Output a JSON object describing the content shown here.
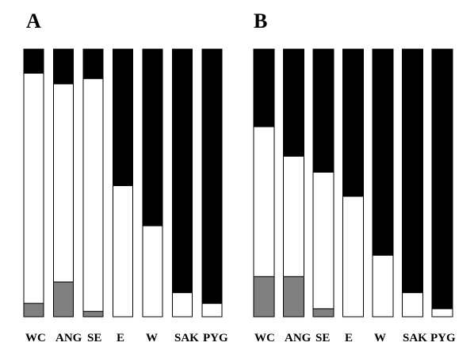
{
  "chart_data": [
    {
      "type": "bar",
      "stacked": true,
      "normalized": true,
      "panel_label": "A",
      "categories": [
        "WC",
        "ANG",
        "SE",
        "E",
        "W",
        "SAK",
        "PYG"
      ],
      "ylim": [
        0,
        1
      ],
      "grid": false,
      "series": [
        {
          "color": "#808080",
          "values": [
            0.05,
            0.13,
            0.02,
            0.0,
            0.0,
            0.0,
            0.0
          ]
        },
        {
          "color": "#ffffff",
          "values": [
            0.86,
            0.74,
            0.87,
            0.49,
            0.34,
            0.09,
            0.05
          ]
        },
        {
          "color": "#000000",
          "values": [
            0.09,
            0.13,
            0.11,
            0.51,
            0.66,
            0.91,
            0.95
          ]
        }
      ]
    },
    {
      "type": "bar",
      "stacked": true,
      "normalized": true,
      "panel_label": "B",
      "categories": [
        "WC",
        "ANG",
        "SE",
        "E",
        "W",
        "SAK",
        "PYG"
      ],
      "ylim": [
        0,
        1
      ],
      "grid": false,
      "series": [
        {
          "color": "#808080",
          "values": [
            0.15,
            0.15,
            0.03,
            0.0,
            0.0,
            0.0,
            0.0
          ]
        },
        {
          "color": "#ffffff",
          "values": [
            0.56,
            0.45,
            0.51,
            0.45,
            0.23,
            0.09,
            0.03
          ]
        },
        {
          "color": "#000000",
          "values": [
            0.29,
            0.4,
            0.46,
            0.55,
            0.77,
            0.91,
            0.97
          ]
        }
      ]
    }
  ]
}
